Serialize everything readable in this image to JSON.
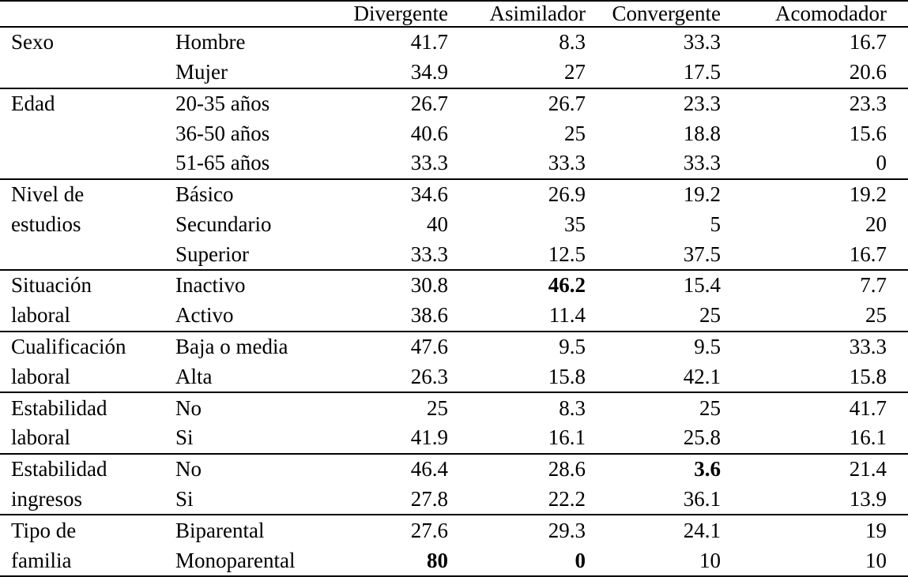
{
  "table": {
    "header": [
      "Divergente",
      "Asimilador",
      "Convergente",
      "Acomodador"
    ],
    "rows": [
      {
        "c0": "Sexo",
        "c1": "Hombre",
        "v": [
          "41.7",
          "8.3",
          "33.3",
          "16.7"
        ],
        "bold": [],
        "sep": true
      },
      {
        "c0": "",
        "c1": "Mujer",
        "v": [
          "34.9",
          "27",
          "17.5",
          "20.6"
        ],
        "bold": [],
        "sep": false
      },
      {
        "c0": "Edad",
        "c1": "20-35 años",
        "v": [
          "26.7",
          "26.7",
          "23.3",
          "23.3"
        ],
        "bold": [],
        "sep": true
      },
      {
        "c0": "",
        "c1": "36-50 años",
        "v": [
          "40.6",
          "25",
          "18.8",
          "15.6"
        ],
        "bold": [],
        "sep": false
      },
      {
        "c0": "",
        "c1": "51-65 años",
        "v": [
          "33.3",
          "33.3",
          "33.3",
          "0"
        ],
        "bold": [],
        "sep": false
      },
      {
        "c0": "Nivel de",
        "c1": "Básico",
        "v": [
          "34.6",
          "26.9",
          "19.2",
          "19.2"
        ],
        "bold": [],
        "sep": true
      },
      {
        "c0": "estudios",
        "c1": "Secundario",
        "v": [
          "40",
          "35",
          "5",
          "20"
        ],
        "bold": [],
        "sep": false
      },
      {
        "c0": "",
        "c1": "Superior",
        "v": [
          "33.3",
          "12.5",
          "37.5",
          "16.7"
        ],
        "bold": [],
        "sep": false
      },
      {
        "c0": "Situación",
        "c1": "Inactivo",
        "v": [
          "30.8",
          "46.2",
          "15.4",
          "7.7"
        ],
        "bold": [
          1
        ],
        "sep": true
      },
      {
        "c0": "laboral",
        "c1": "Activo",
        "v": [
          "38.6",
          "11.4",
          "25",
          "25"
        ],
        "bold": [],
        "sep": false
      },
      {
        "c0": "Cualificación",
        "c1": "Baja o media",
        "v": [
          "47.6",
          "9.5",
          "9.5",
          "33.3"
        ],
        "bold": [],
        "sep": true
      },
      {
        "c0": "laboral",
        "c1": "Alta",
        "v": [
          "26.3",
          "15.8",
          "42.1",
          "15.8"
        ],
        "bold": [],
        "sep": false
      },
      {
        "c0": "Estabilidad",
        "c1": "No",
        "v": [
          "25",
          "8.3",
          "25",
          "41.7"
        ],
        "bold": [],
        "sep": true
      },
      {
        "c0": "laboral",
        "c1": "Si",
        "v": [
          "41.9",
          "16.1",
          "25.8",
          "16.1"
        ],
        "bold": [],
        "sep": false
      },
      {
        "c0": "Estabilidad",
        "c1": "No",
        "v": [
          "46.4",
          "28.6",
          "3.6",
          "21.4"
        ],
        "bold": [
          2
        ],
        "sep": true
      },
      {
        "c0": "ingresos",
        "c1": "Si",
        "v": [
          "27.8",
          "22.2",
          "36.1",
          "13.9"
        ],
        "bold": [],
        "sep": false
      },
      {
        "c0": "Tipo de",
        "c1": "Biparental",
        "v": [
          "27.6",
          "29.3",
          "24.1",
          "19"
        ],
        "bold": [],
        "sep": true
      },
      {
        "c0": "familia",
        "c1": "Monoparental",
        "v": [
          "80",
          "0",
          "10",
          "10"
        ],
        "bold": [
          0,
          1
        ],
        "sep": false
      }
    ]
  }
}
